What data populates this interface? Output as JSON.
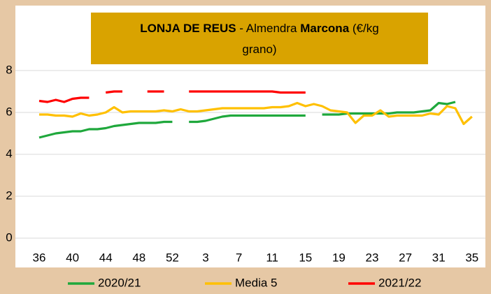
{
  "chart_data": {
    "type": "line",
    "title_parts": [
      {
        "text": "LONJA DE REUS",
        "bold": true,
        "line": 0
      },
      {
        "text": " - Almendra ",
        "bold": false,
        "line": 0
      },
      {
        "text": "Marcona",
        "bold": true,
        "line": 0
      },
      {
        "text": " (€/kg",
        "bold": false,
        "line": 0
      },
      {
        "text": "grano)",
        "bold": false,
        "line": 1
      }
    ],
    "categories": [
      "36",
      null,
      null,
      null,
      "40",
      null,
      null,
      null,
      "44",
      null,
      null,
      null,
      "48",
      null,
      null,
      null,
      "52",
      null,
      null,
      null,
      "3",
      null,
      null,
      null,
      "7",
      null,
      null,
      null,
      "11",
      null,
      null,
      null,
      "15",
      null,
      null,
      null,
      "19",
      null,
      null,
      null,
      "23",
      null,
      null,
      null,
      "27",
      null,
      null,
      null,
      "31",
      null,
      null,
      null,
      "35"
    ],
    "series": [
      {
        "name": "2020/21",
        "color": "#1fa83c",
        "values": [
          4.8,
          4.9,
          5.0,
          5.05,
          5.1,
          5.1,
          5.2,
          5.2,
          5.25,
          5.35,
          5.4,
          5.45,
          5.5,
          5.5,
          5.5,
          5.55,
          5.55,
          null,
          5.55,
          5.55,
          5.6,
          5.7,
          5.8,
          5.85,
          5.85,
          5.85,
          5.85,
          5.85,
          5.85,
          5.85,
          5.85,
          5.85,
          5.85,
          null,
          5.9,
          5.9,
          5.9,
          5.95,
          5.95,
          5.95,
          5.95,
          5.95,
          5.95,
          6.0,
          6.0,
          6.0,
          6.05,
          6.1,
          6.45,
          6.4,
          6.5,
          null,
          null
        ]
      },
      {
        "name": "Media 5",
        "color": "#ffc000",
        "values": [
          5.9,
          5.9,
          5.85,
          5.85,
          5.8,
          5.95,
          5.85,
          5.9,
          6.0,
          6.25,
          6.0,
          6.05,
          6.05,
          6.05,
          6.05,
          6.1,
          6.05,
          6.15,
          6.05,
          6.05,
          6.1,
          6.15,
          6.2,
          6.2,
          6.2,
          6.2,
          6.2,
          6.2,
          6.25,
          6.25,
          6.3,
          6.45,
          6.3,
          6.4,
          6.3,
          6.1,
          6.05,
          6.0,
          5.5,
          5.85,
          5.85,
          6.1,
          5.8,
          5.85,
          5.85,
          5.85,
          5.85,
          5.95,
          5.9,
          6.3,
          6.2,
          5.45,
          5.8
        ]
      },
      {
        "name": "2021/22",
        "color": "#ff0000",
        "values": [
          6.55,
          6.5,
          6.6,
          6.5,
          6.65,
          6.7,
          6.7,
          null,
          6.95,
          7.0,
          7.0,
          null,
          null,
          7.0,
          7.0,
          7.0,
          null,
          null,
          7.0,
          7.0,
          7.0,
          7.0,
          7.0,
          7.0,
          7.0,
          7.0,
          7.0,
          7.0,
          7.0,
          6.95,
          6.95,
          6.95,
          6.95,
          null,
          null,
          null,
          null,
          null,
          null,
          null,
          null,
          null,
          null,
          null,
          null,
          null,
          null,
          null,
          null,
          null,
          null,
          null,
          null
        ]
      }
    ],
    "ylim": [
      0,
      8
    ],
    "yticks": [
      0,
      2,
      4,
      6,
      8
    ],
    "grid": true,
    "legend": "bottom"
  }
}
